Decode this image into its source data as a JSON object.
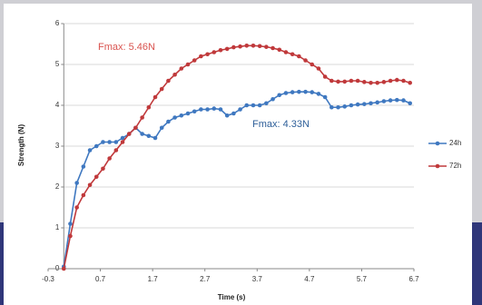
{
  "chart_data": {
    "type": "line",
    "xlabel": "Time (s)",
    "ylabel": "Strength (N)",
    "x": [
      0,
      0.125,
      0.25,
      0.375,
      0.5,
      0.625,
      0.75,
      0.875,
      1,
      1.125,
      1.25,
      1.375,
      1.5,
      1.625,
      1.75,
      1.875,
      2,
      2.125,
      2.25,
      2.375,
      2.5,
      2.625,
      2.75,
      2.875,
      3,
      3.125,
      3.25,
      3.375,
      3.5,
      3.625,
      3.75,
      3.875,
      4,
      4.125,
      4.25,
      4.375,
      4.5,
      4.625,
      4.75,
      4.875,
      5,
      5.125,
      5.25,
      5.375,
      5.5,
      5.625,
      5.75,
      5.875,
      6,
      6.125,
      6.25,
      6.375,
      6.5,
      6.625
    ],
    "series": [
      {
        "name": "24h",
        "color": "#3f78c0",
        "values": [
          0.05,
          1.1,
          2.1,
          2.5,
          2.9,
          3.0,
          3.1,
          3.1,
          3.1,
          3.2,
          3.3,
          3.45,
          3.3,
          3.25,
          3.2,
          3.45,
          3.6,
          3.7,
          3.75,
          3.8,
          3.85,
          3.9,
          3.9,
          3.92,
          3.9,
          3.75,
          3.8,
          3.9,
          4.0,
          4.0,
          4.0,
          4.05,
          4.15,
          4.25,
          4.3,
          4.32,
          4.33,
          4.33,
          4.32,
          4.28,
          4.2,
          3.95,
          3.95,
          3.97,
          4.0,
          4.02,
          4.03,
          4.05,
          4.07,
          4.1,
          4.12,
          4.13,
          4.12,
          4.05
        ]
      },
      {
        "name": "72h",
        "color": "#c0393b",
        "values": [
          0,
          0.8,
          1.5,
          1.8,
          2.05,
          2.25,
          2.45,
          2.7,
          2.9,
          3.1,
          3.3,
          3.45,
          3.7,
          3.95,
          4.2,
          4.4,
          4.6,
          4.75,
          4.9,
          5.0,
          5.1,
          5.2,
          5.25,
          5.3,
          5.35,
          5.38,
          5.42,
          5.44,
          5.46,
          5.46,
          5.45,
          5.43,
          5.4,
          5.36,
          5.3,
          5.25,
          5.2,
          5.1,
          5.0,
          4.9,
          4.7,
          4.6,
          4.58,
          4.58,
          4.6,
          4.6,
          4.57,
          4.55,
          4.55,
          4.57,
          4.6,
          4.62,
          4.6,
          4.55
        ]
      }
    ],
    "annotations": [
      {
        "text": "Fmax: 5.46N",
        "color": "#d9534f"
      },
      {
        "text": "Fmax: 4.33N",
        "color": "#2e5f99"
      }
    ],
    "xlim": [
      -0.3,
      6.7
    ],
    "xticks": [
      -0.3,
      0.7,
      1.7,
      2.7,
      3.7,
      4.7,
      5.7,
      6.7
    ],
    "ylim": [
      0,
      6
    ],
    "yticks": [
      0,
      1,
      2,
      3,
      4,
      5,
      6
    ],
    "grid": true,
    "legend": "right"
  }
}
